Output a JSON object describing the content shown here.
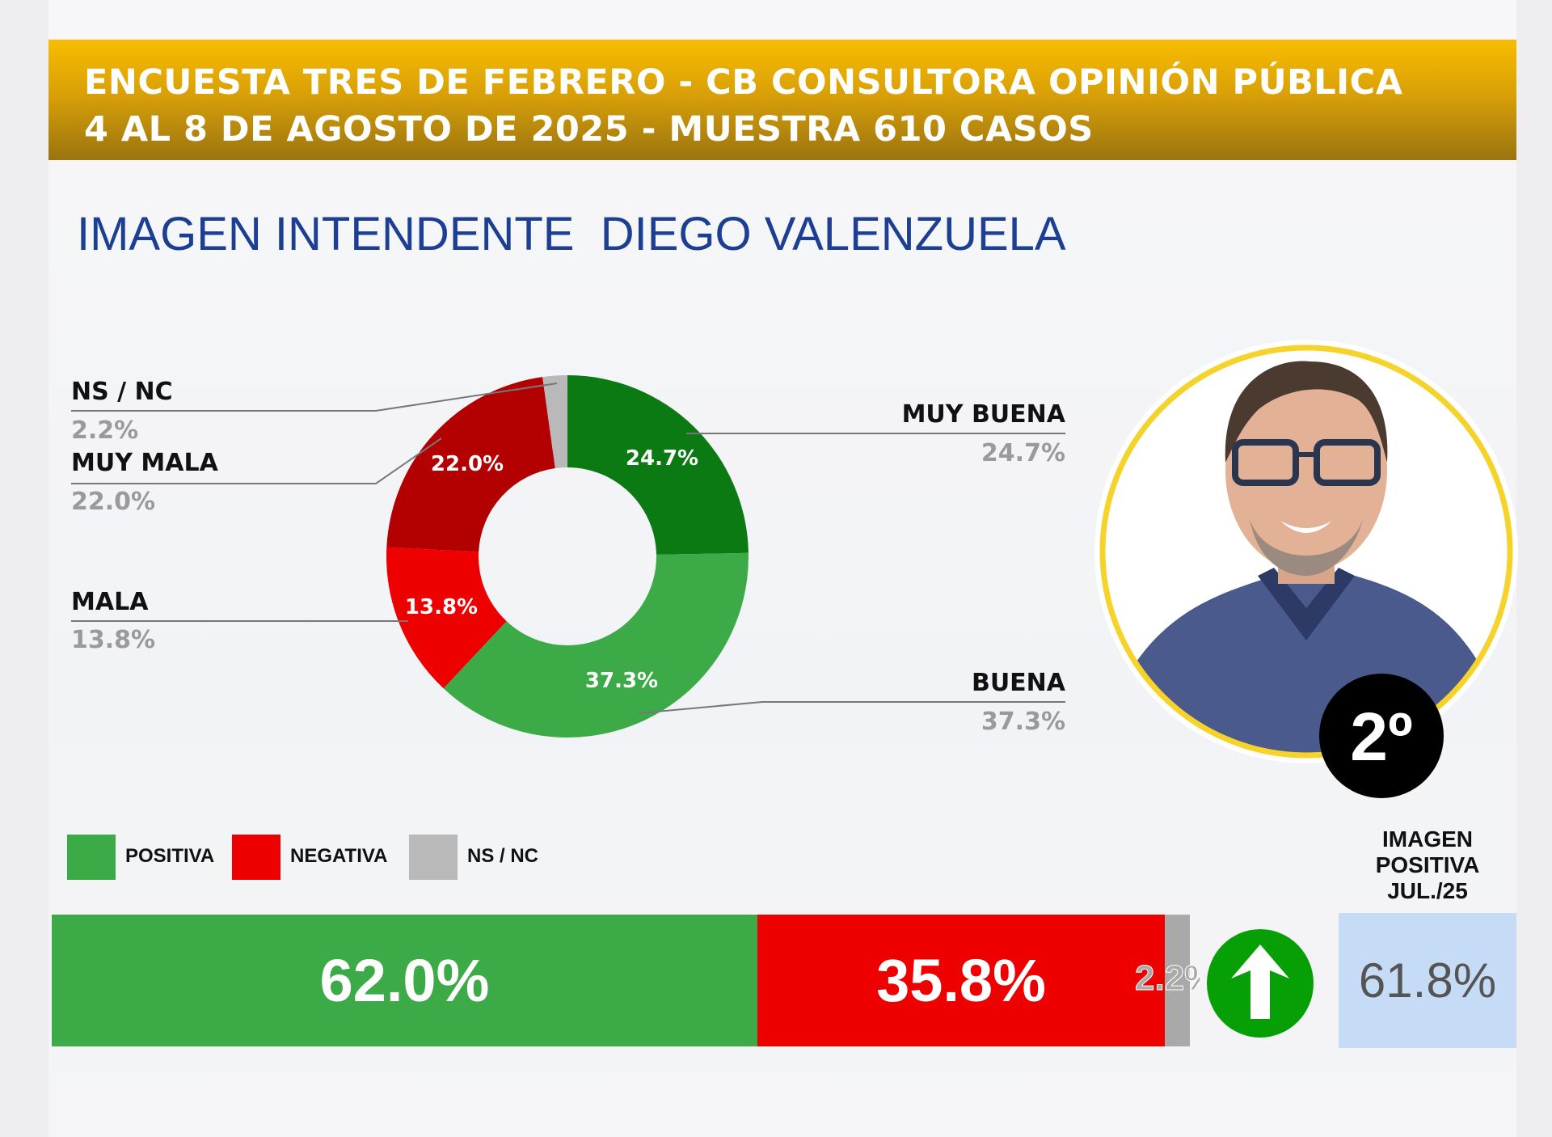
{
  "header": {
    "line1": "ENCUESTA TRES DE FEBRERO - CB CONSULTORA OPINIÓN PÚBLICA",
    "line2": "4 AL 8 DE AGOSTO DE 2025 - MUESTRA 610 CASOS"
  },
  "title": "IMAGEN INTENDENTE  DIEGO VALENZUELA",
  "badge": "2º",
  "chart_data": [
    {
      "type": "pie",
      "donut": true,
      "slices": [
        {
          "name": "MUY BUENA",
          "value": 24.7,
          "label": "24.7%",
          "color": "#0b7a12"
        },
        {
          "name": "BUENA",
          "value": 37.3,
          "label": "37.3%",
          "color": "#3daa48"
        },
        {
          "name": "MALA",
          "value": 13.8,
          "label": "13.8%",
          "color": "#ee0000"
        },
        {
          "name": "MUY MALA",
          "value": 22.0,
          "label": "22.0%",
          "color": "#b30000"
        },
        {
          "name": "NS / NC",
          "value": 2.2,
          "label": "2.2%",
          "color": "#b9b9b9"
        }
      ]
    },
    {
      "type": "bar",
      "stacked": true,
      "orientation": "horizontal",
      "legend": [
        "POSITIVA",
        "NEGATIVA",
        "NS / NC"
      ],
      "series": [
        {
          "name": "POSITIVA",
          "value": 62.0,
          "label": "62.0%",
          "color": "#3daa48"
        },
        {
          "name": "NEGATIVA",
          "value": 35.8,
          "label": "35.8%",
          "color": "#ee0000"
        },
        {
          "name": "NS / NC",
          "value": 2.2,
          "label": "2.2%",
          "color": "#a9a9a9"
        }
      ]
    }
  ],
  "trend_icon": "arrow-up-icon",
  "previous": {
    "heading_line1": "IMAGEN",
    "heading_line2": "POSITIVA",
    "heading_line3": "JUL./25",
    "value": "61.8%"
  }
}
